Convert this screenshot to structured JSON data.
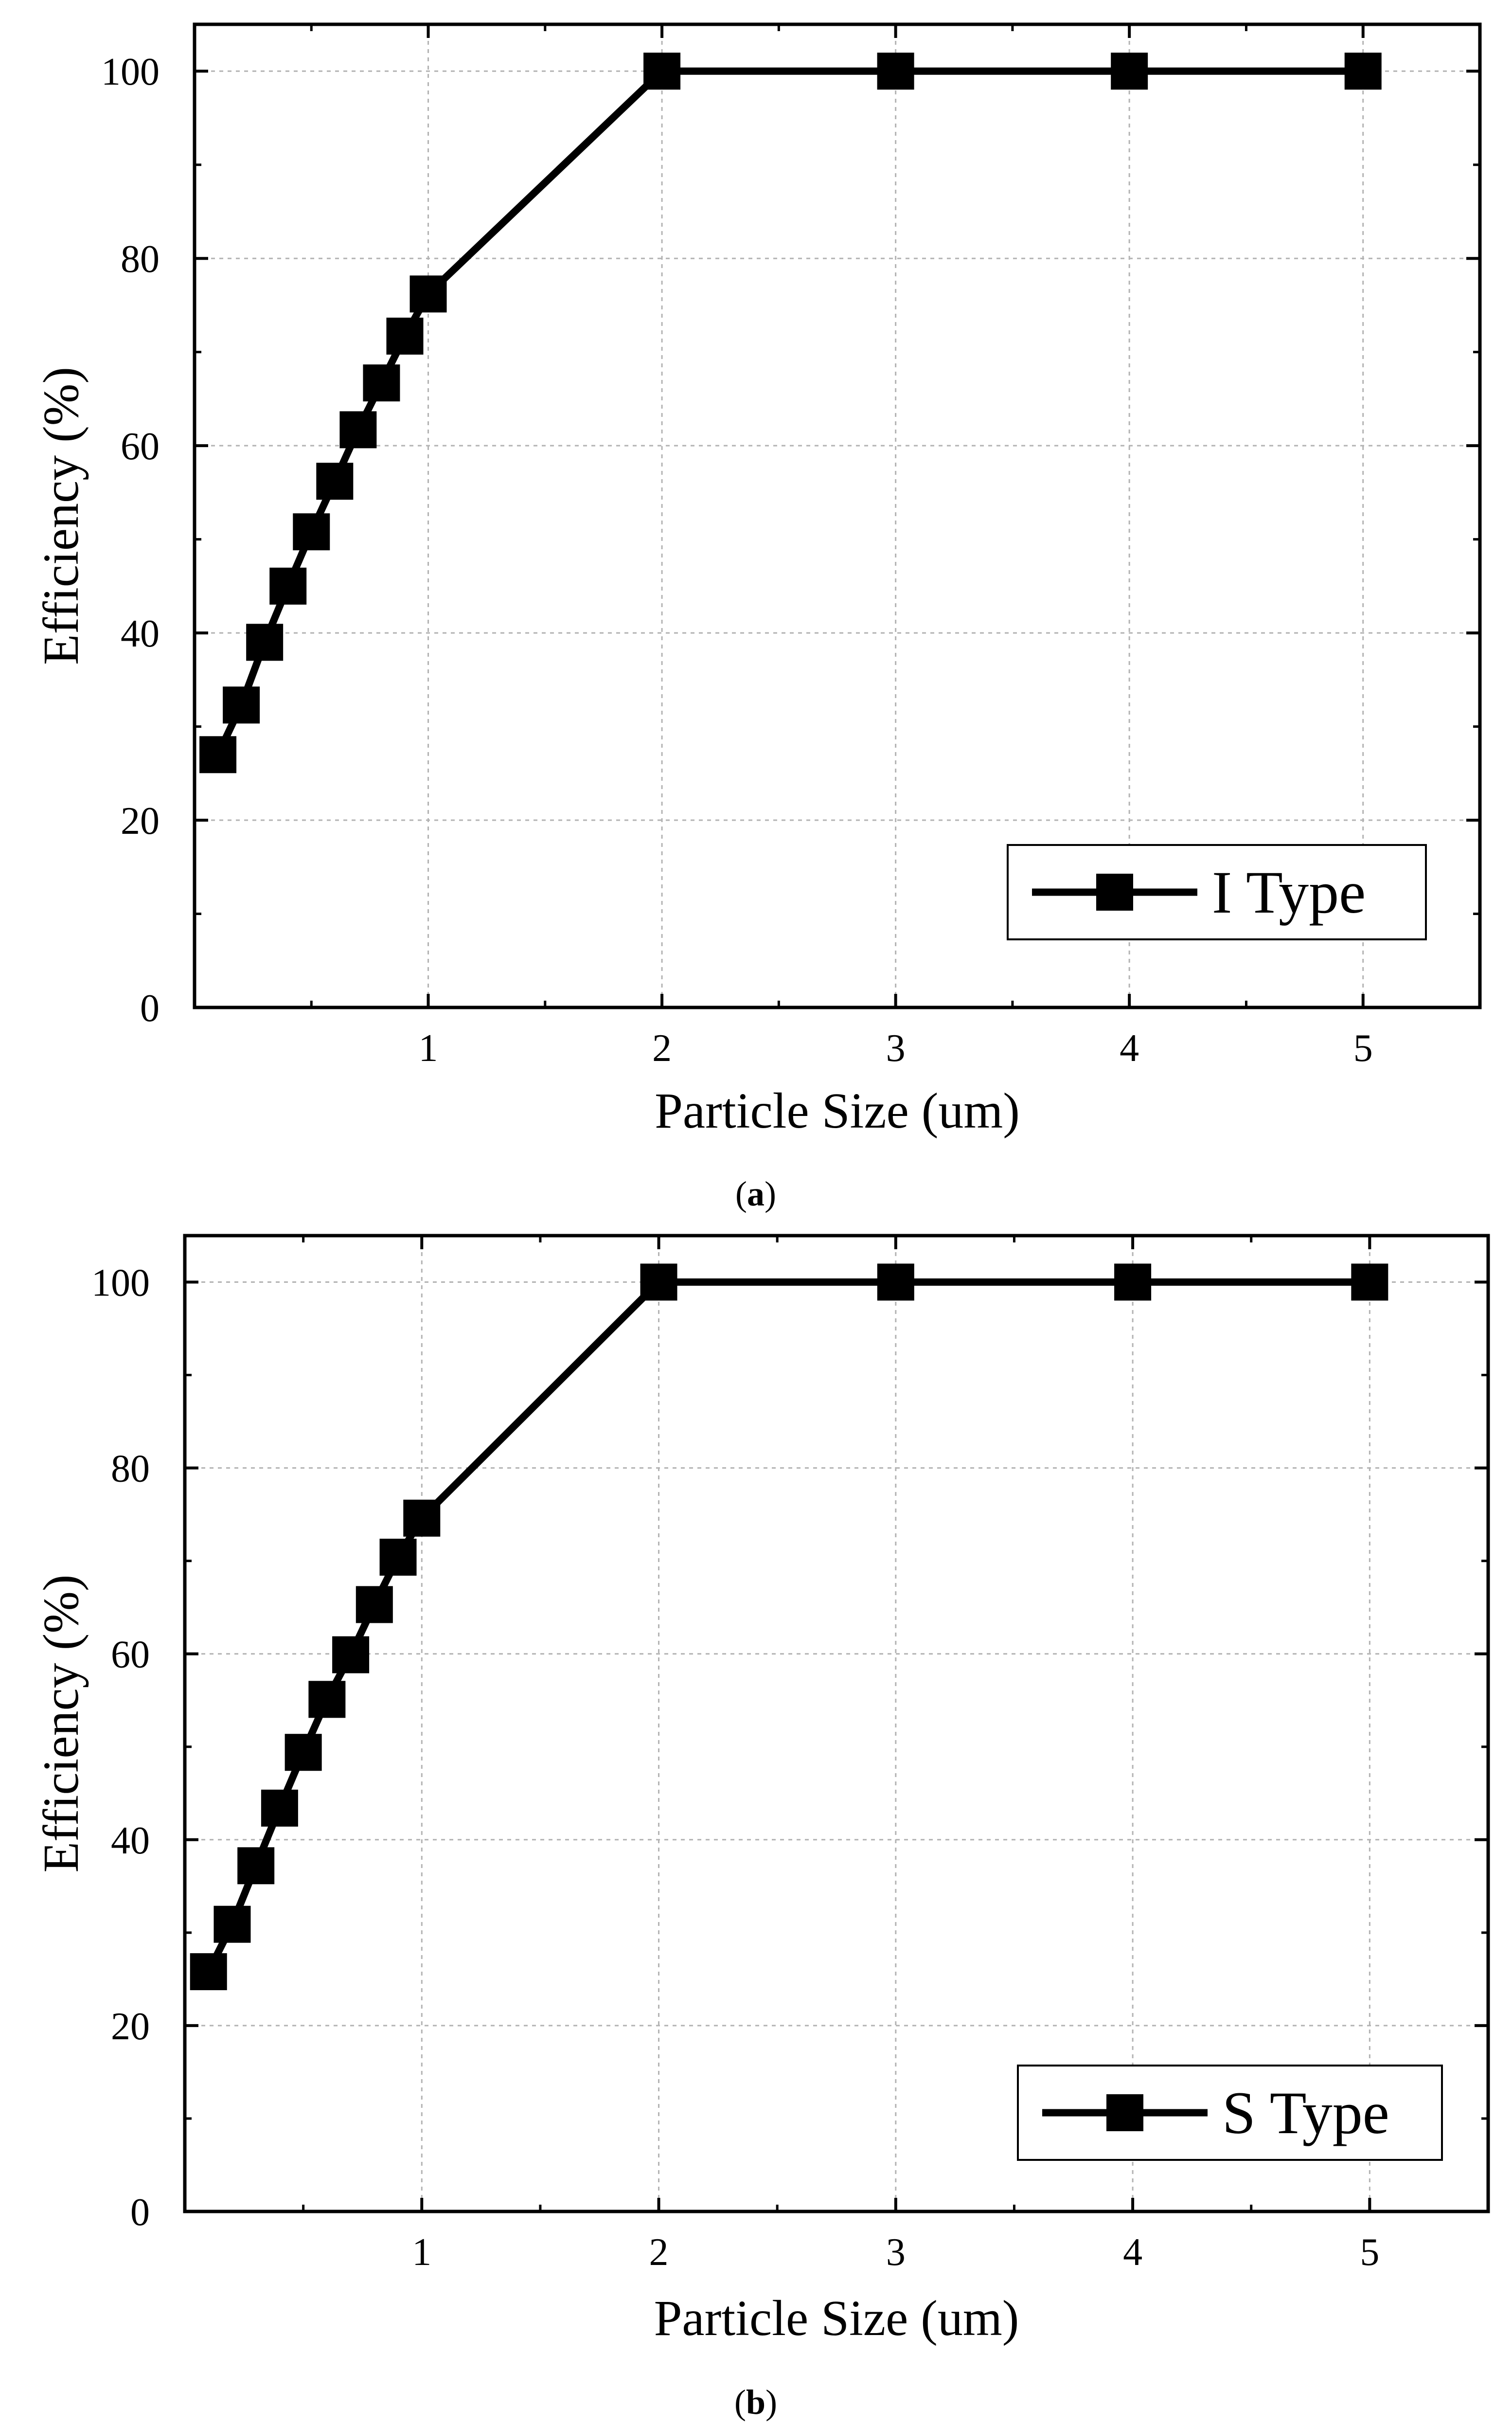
{
  "chart_data": [
    {
      "type": "line",
      "panel_label": "(a)",
      "panel_letter": "a",
      "xlabel": "Particle Size (um)",
      "ylabel": "Efficiency (%)",
      "xlim": [
        0,
        5.5
      ],
      "ylim": [
        0,
        105
      ],
      "xticks": [
        1,
        2,
        3,
        4,
        5
      ],
      "xtick_labels": [
        "1",
        "2",
        "3",
        "4",
        "5"
      ],
      "yticks": [
        0,
        20,
        40,
        60,
        80,
        100
      ],
      "ytick_labels": [
        "0",
        "20",
        "40",
        "60",
        "80",
        "100"
      ],
      "grid": true,
      "legend_position": "bottom-right",
      "series": [
        {
          "name": "I Type",
          "marker": "square",
          "color": "#000000",
          "x": [
            0.1,
            0.2,
            0.3,
            0.4,
            0.5,
            0.6,
            0.7,
            0.8,
            0.9,
            1,
            2,
            3,
            4,
            5
          ],
          "values": [
            27,
            32.3,
            39,
            45,
            50.8,
            56.2,
            61.7,
            66.7,
            71.7,
            76.2,
            100,
            100,
            100,
            100
          ]
        }
      ]
    },
    {
      "type": "line",
      "panel_label": "(b)",
      "panel_letter": "b",
      "xlabel": "Particle Size (um)",
      "ylabel": "Efficiency (%)",
      "xlim": [
        0,
        5.5
      ],
      "ylim": [
        0,
        105
      ],
      "xticks": [
        1,
        2,
        3,
        4,
        5
      ],
      "xtick_labels": [
        "1",
        "2",
        "3",
        "4",
        "5"
      ],
      "yticks": [
        0,
        20,
        40,
        60,
        80,
        100
      ],
      "ytick_labels": [
        "0",
        "20",
        "40",
        "60",
        "80",
        "100"
      ],
      "grid": true,
      "legend_position": "bottom-right",
      "series": [
        {
          "name": "S Type",
          "marker": "square",
          "color": "#000000",
          "x": [
            0.1,
            0.2,
            0.3,
            0.4,
            0.5,
            0.6,
            0.7,
            0.8,
            0.9,
            1,
            2,
            3,
            4,
            5
          ],
          "values": [
            25.8,
            30.9,
            37.2,
            43.4,
            49.4,
            55.1,
            59.9,
            65.3,
            70.4,
            74.6,
            100,
            100,
            100,
            100
          ]
        }
      ]
    }
  ]
}
